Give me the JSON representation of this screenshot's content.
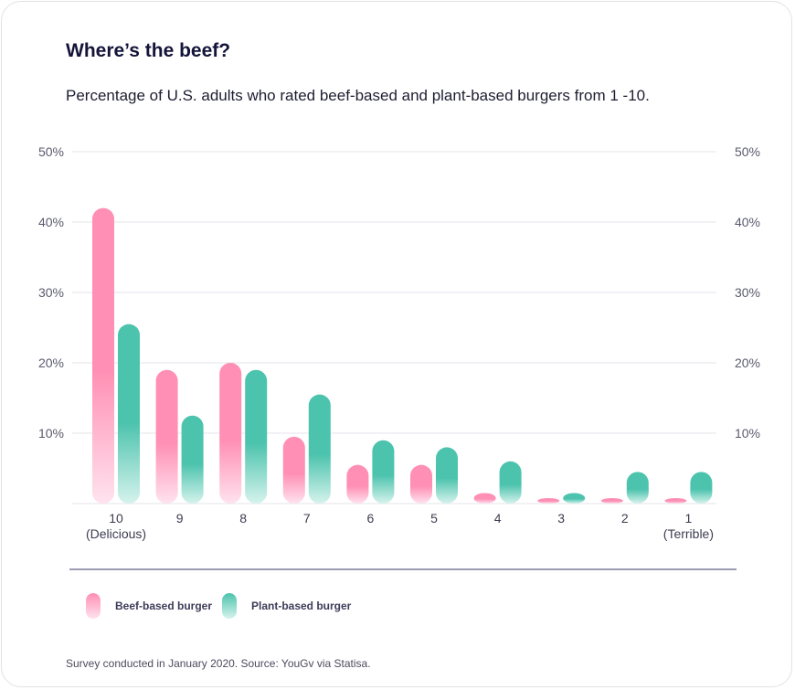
{
  "title": "Where’s the beef?",
  "subtitle": "Percentage of U.S. adults who rated beef-based and plant-based burgers from 1 -10.",
  "source": "Survey conducted in January 2020. Source: YouGv via Statisa.",
  "colors": {
    "beef": "#ff8fb4",
    "beef_light": "#ffe3ee",
    "plant": "#4cc3ad",
    "plant_light": "#d6f3ed",
    "axis": "#3a3a6a",
    "grid": "#e6e6ec"
  },
  "chart_data": {
    "type": "bar",
    "title": "Where’s the beef?",
    "categories": [
      "10",
      "9",
      "8",
      "7",
      "6",
      "5",
      "4",
      "3",
      "2",
      "1"
    ],
    "category_sublabels": [
      "(Delicious)",
      "",
      "",
      "",
      "",
      "",
      "",
      "",
      "",
      "(Terrible)"
    ],
    "series": [
      {
        "name": "Beef-based burger",
        "values": [
          42,
          19,
          20,
          9.5,
          5.5,
          5.5,
          1.5,
          0.5,
          0.5,
          0.5
        ]
      },
      {
        "name": "Plant-based burger",
        "values": [
          25.5,
          12.5,
          19,
          15.5,
          9,
          8,
          6,
          1.5,
          4.5,
          4.5
        ]
      }
    ],
    "yticks": [
      "10%",
      "20%",
      "30%",
      "40%",
      "50%"
    ],
    "ylim": [
      0,
      50
    ],
    "grid": true,
    "legend_position": "bottom-left"
  }
}
